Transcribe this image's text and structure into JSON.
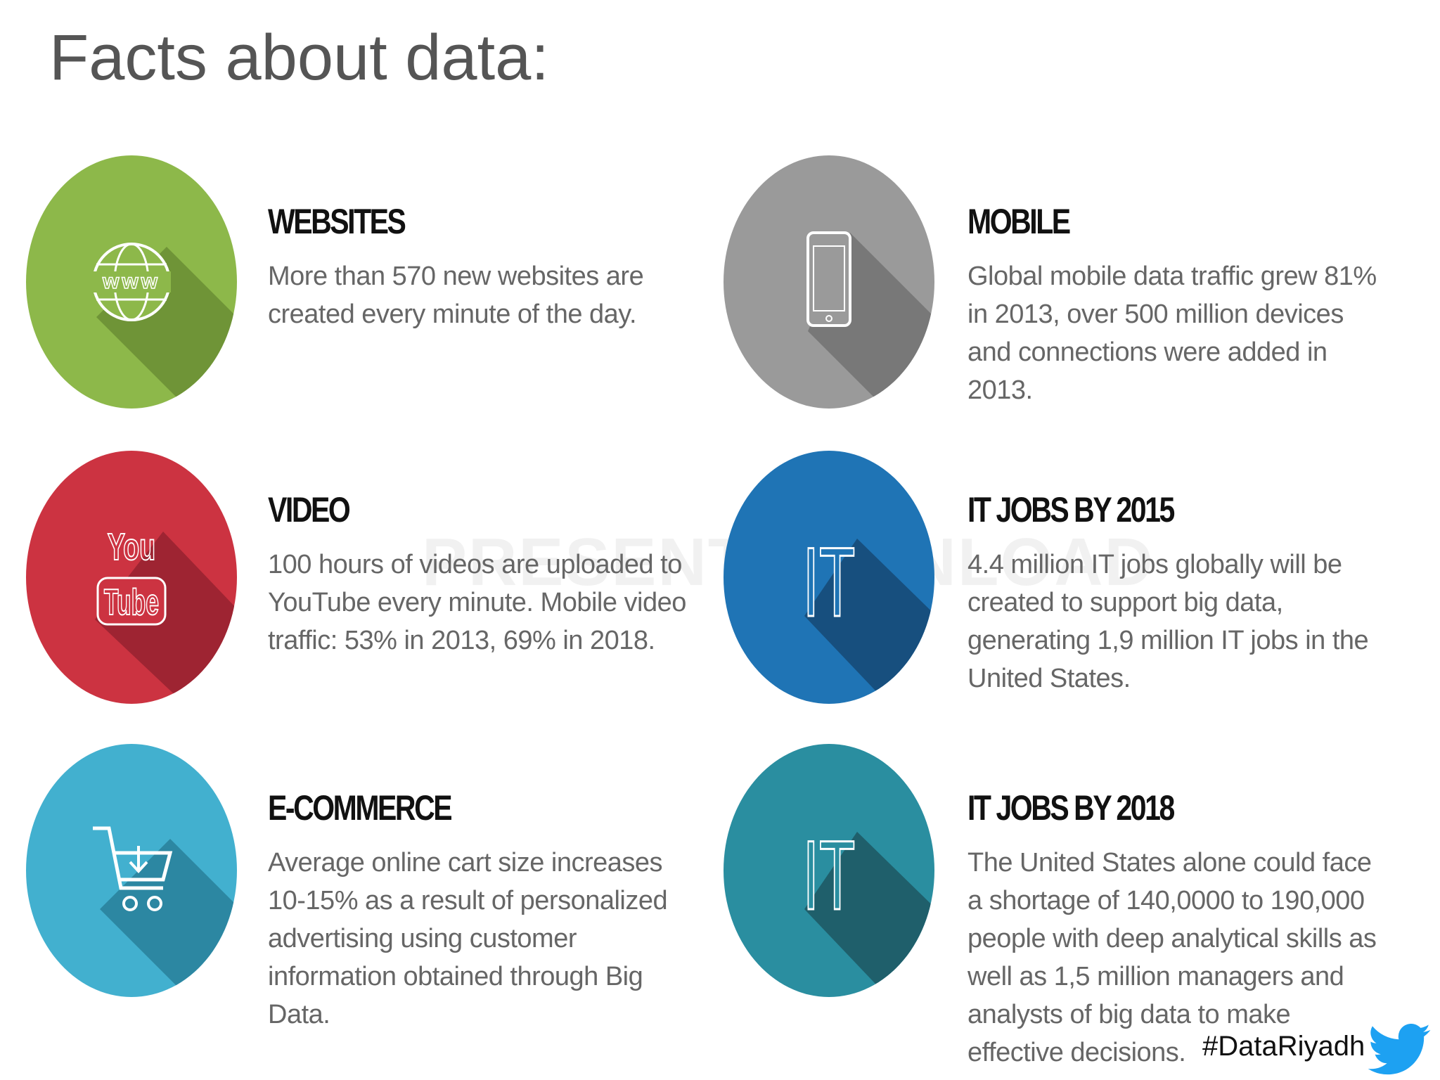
{
  "title": "Facts about data:",
  "watermark": "PRESENTATIONLOAD",
  "hashtag": "#DataRiyadh",
  "items": [
    {
      "heading": "WEBSITES",
      "text": "More than 570 new websites are created every minute of the day.",
      "icon_text": "www"
    },
    {
      "heading": "MOBILE",
      "text": "Global mobile data traffic grew 81% in 2013, over 500 million devices and connections were added in 2013."
    },
    {
      "heading": "VIDEO",
      "text": "100 hours of videos are uploaded to YouTube every minute. Mobile video traffic: 53% in 2013, 69% in 2018.",
      "icon_text": [
        "You",
        "Tube"
      ]
    },
    {
      "heading": "IT JOBS BY 2015",
      "text": "4.4 million IT jobs globally will be created to support big data, generating 1,9 million IT jobs in the United States.",
      "icon_text": "IT"
    },
    {
      "heading": "E-COMMERCE",
      "text": "Average online cart size increases 10-15% as a result of personalized advertising using customer information obtained through Big Data."
    },
    {
      "heading": "IT JOBS BY 2018",
      "text": "The United States alone could face a shortage of 140,0000 to 190,000 people with deep analytical skills as well as 1,5 million managers and analysts of big data to make effective decisions.",
      "icon_text": "IT"
    }
  ]
}
